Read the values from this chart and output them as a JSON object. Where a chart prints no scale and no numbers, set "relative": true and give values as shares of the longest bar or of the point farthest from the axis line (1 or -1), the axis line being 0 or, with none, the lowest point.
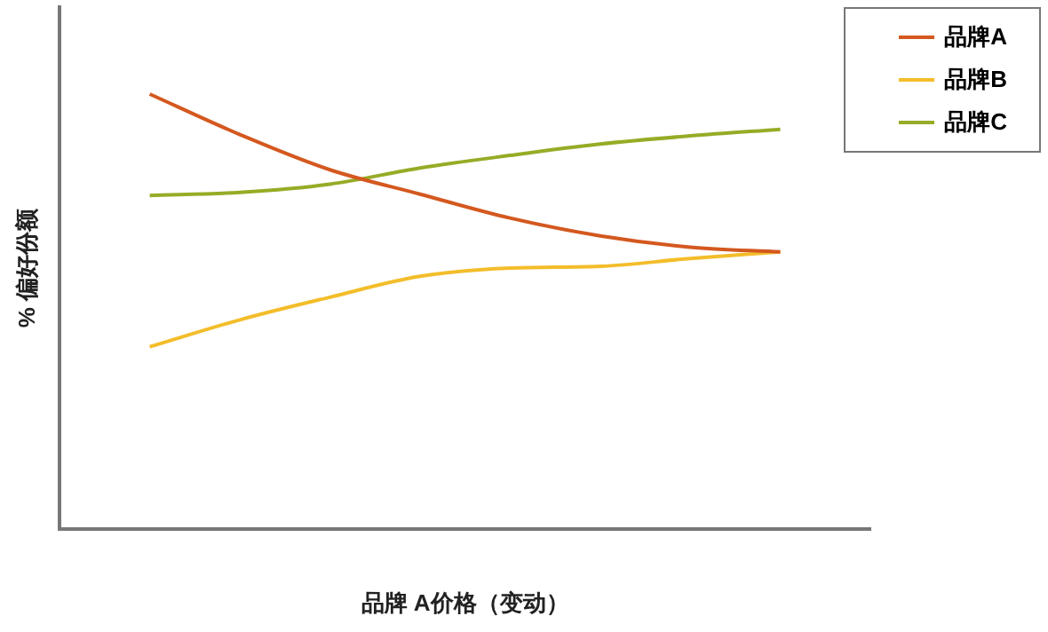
{
  "chart_data": {
    "type": "line",
    "relative": true,
    "xlabel": "品牌 A价格（变动）",
    "ylabel": "% 偏好份额",
    "grid": false,
    "legend": "top right",
    "marker": "none",
    "categories": [
      null,
      null,
      null,
      null,
      null,
      null,
      null,
      null,
      null,
      null
    ],
    "series": [
      {
        "name": "品牌A",
        "color": "#d4581f",
        "values": [
          null,
          1,
          0.907,
          0.826,
          0.77,
          0.715,
          0.674,
          0.648,
          0.637,
          null
        ]
      },
      {
        "name": "品牌B",
        "color": "#f3bd2a",
        "values": [
          null,
          0.419,
          0.481,
          0.533,
          0.581,
          0.6,
          0.604,
          0.622,
          0.637,
          null
        ]
      },
      {
        "name": "品牌C",
        "color": "#97ab26",
        "values": [
          null,
          0.767,
          0.774,
          0.793,
          0.83,
          0.859,
          0.885,
          0.904,
          0.919,
          null
        ]
      }
    ]
  }
}
